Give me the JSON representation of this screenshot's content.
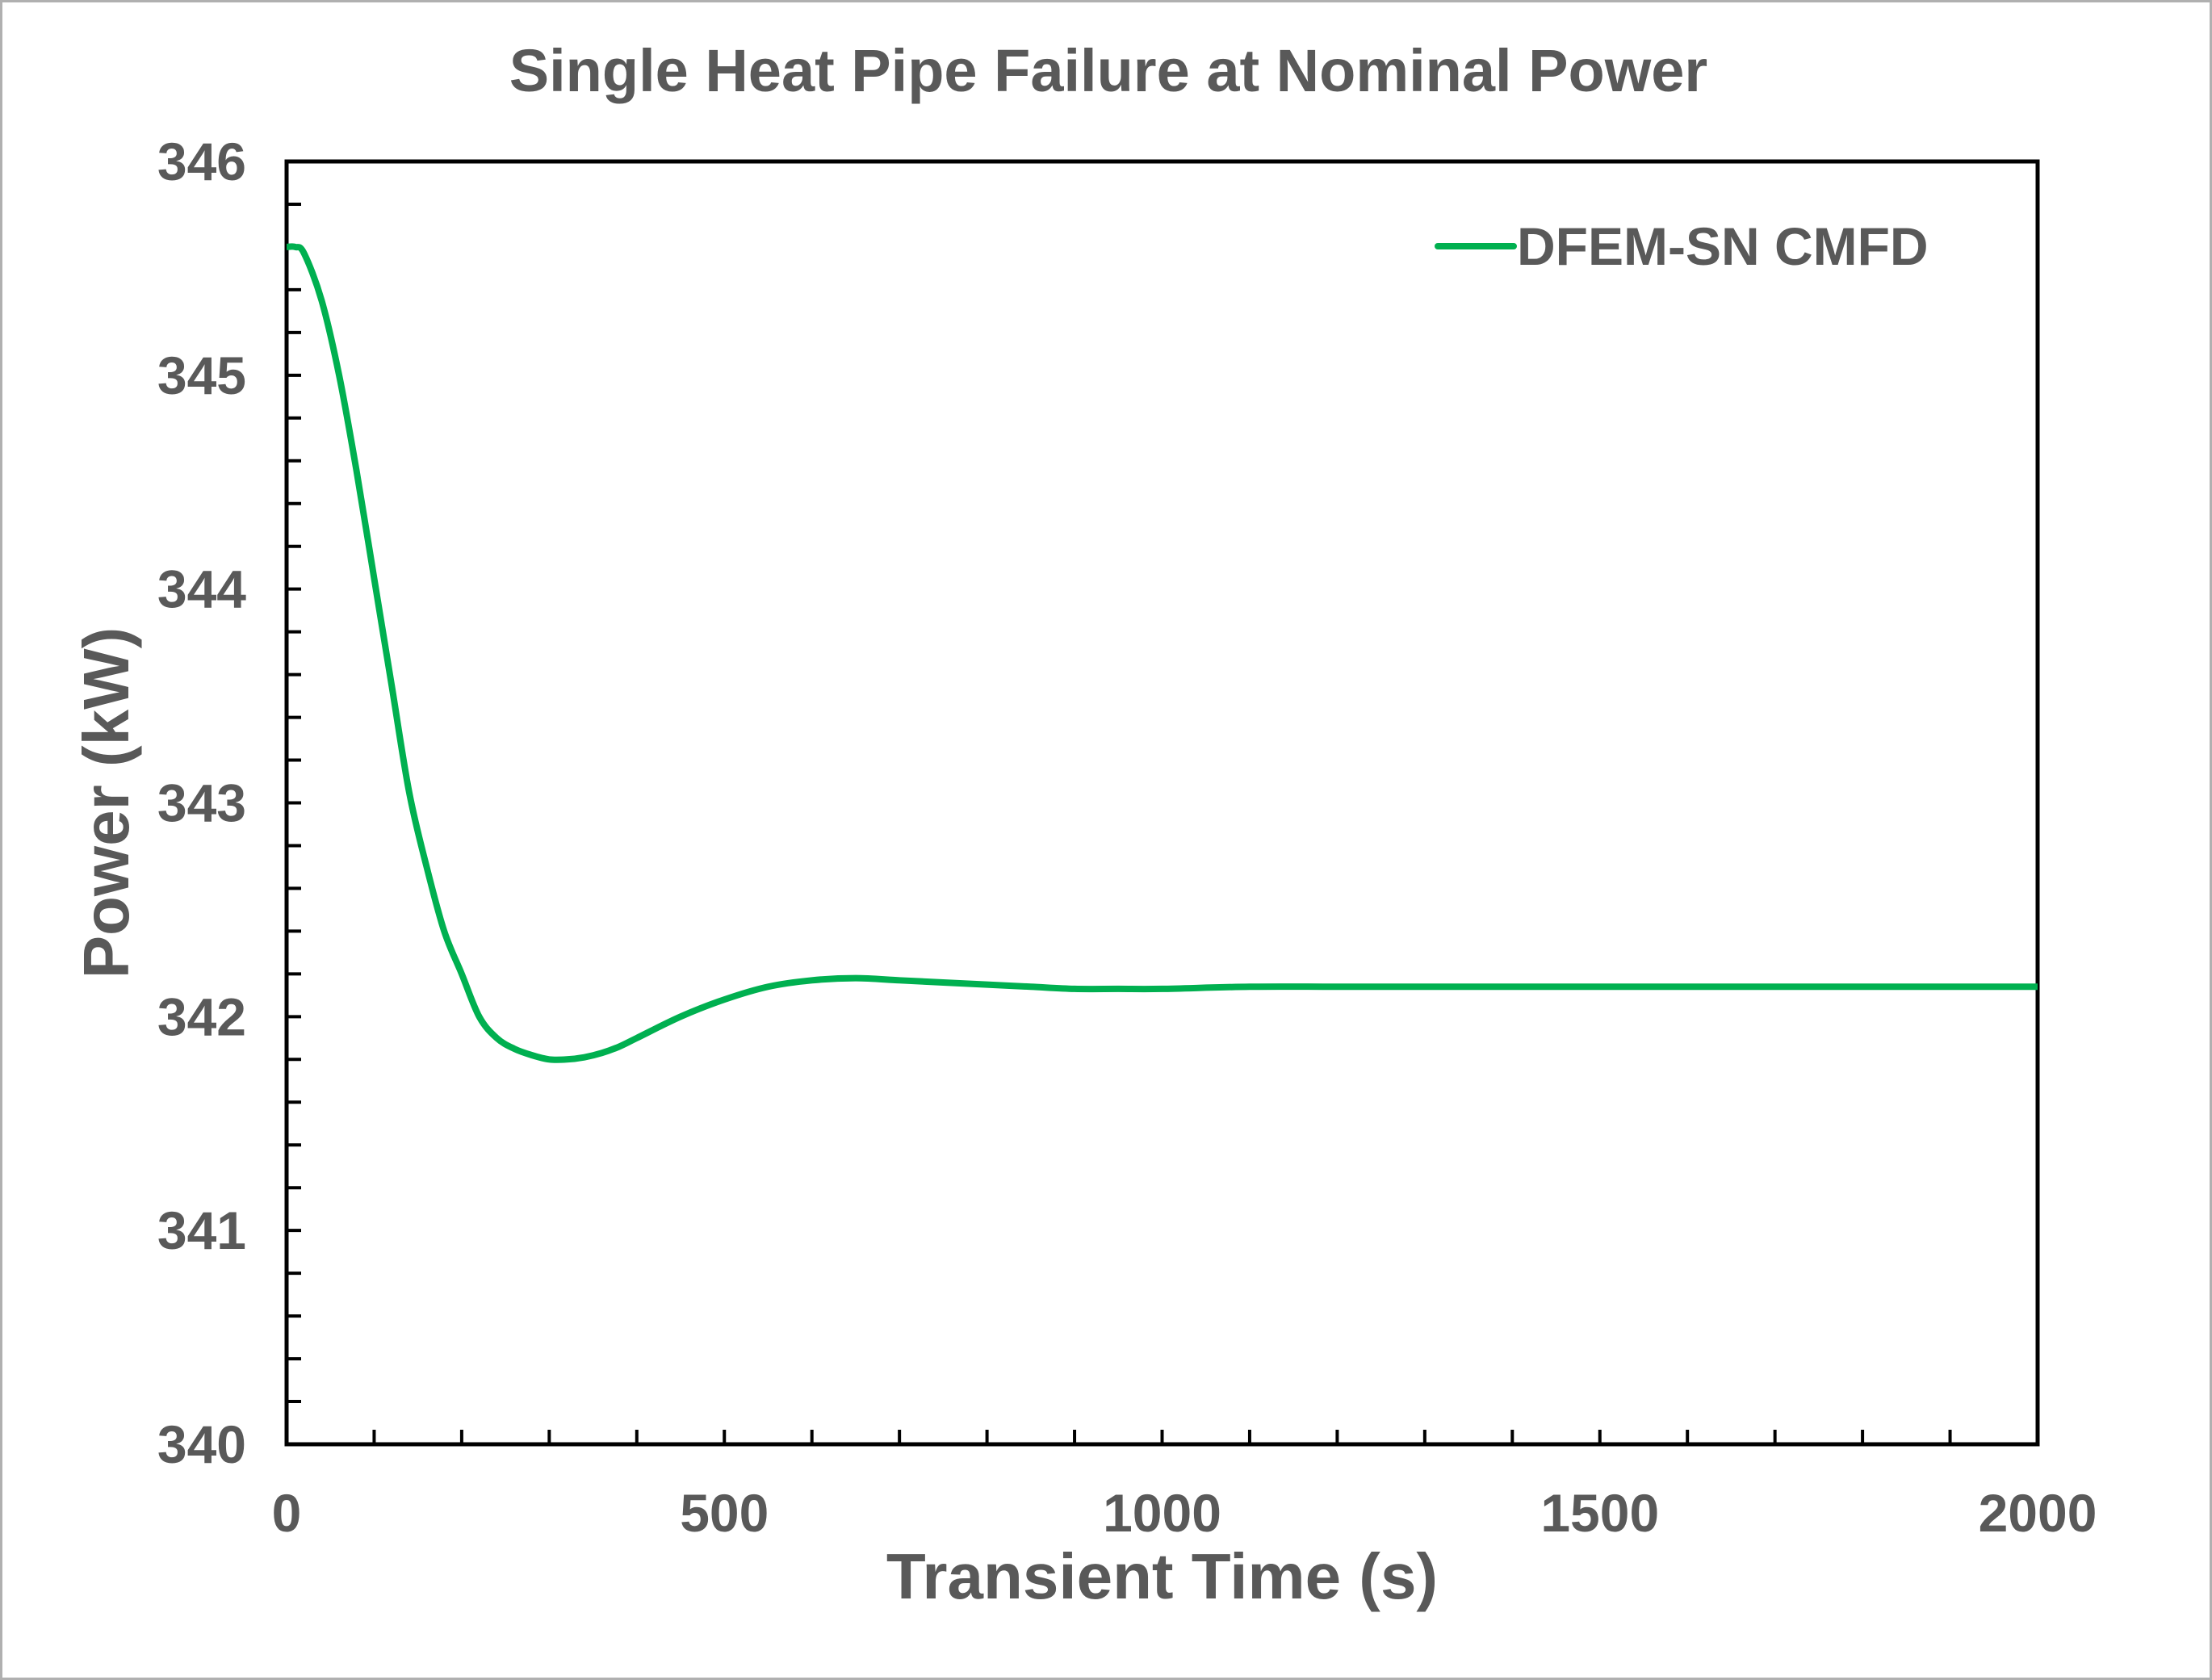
{
  "chart_data": {
    "type": "line",
    "title": "Single Heat Pipe Failure at Nominal Power",
    "xlabel": "Transient Time (s)",
    "ylabel": "Power (kW)",
    "xlim": [
      0,
      2000
    ],
    "ylim": [
      340,
      346
    ],
    "x_ticks": [
      0,
      500,
      1000,
      1500,
      2000
    ],
    "x_tick_labels": [
      "0",
      "500",
      "1000",
      "1500",
      "2000"
    ],
    "x_minor_step": 100,
    "y_ticks": [
      340,
      341,
      342,
      343,
      344,
      345,
      346
    ],
    "y_tick_labels": [
      "340",
      "341",
      "342",
      "343",
      "344",
      "345",
      "346"
    ],
    "y_minor_step": 0.2,
    "grid": false,
    "legend_position": "top-right",
    "colors": {
      "series": "#00b050",
      "text": "#595959",
      "axis": "#000000"
    },
    "series": [
      {
        "name": "DFEM-SN CMFD",
        "x": [
          0,
          10,
          20,
          40,
          60,
          80,
          100,
          120,
          140,
          160,
          180,
          200,
          220,
          240,
          260,
          280,
          300,
          320,
          340,
          360,
          380,
          400,
          450,
          500,
          550,
          600,
          650,
          700,
          750,
          800,
          850,
          900,
          950,
          1000,
          1100,
          1200,
          1300,
          1400,
          1500,
          1600,
          1700,
          1800,
          1900,
          2000
        ],
        "y": [
          345.6,
          345.6,
          345.57,
          345.35,
          345.0,
          344.55,
          344.05,
          343.55,
          343.05,
          342.7,
          342.4,
          342.2,
          342.0,
          341.9,
          341.85,
          341.82,
          341.8,
          341.8,
          341.81,
          341.83,
          341.86,
          341.9,
          342.0,
          342.08,
          342.14,
          342.17,
          342.18,
          342.17,
          342.16,
          342.15,
          342.14,
          342.13,
          342.13,
          342.13,
          342.14,
          342.14,
          342.14,
          342.14,
          342.14,
          342.14,
          342.14,
          342.14,
          342.14,
          342.14
        ]
      }
    ]
  }
}
